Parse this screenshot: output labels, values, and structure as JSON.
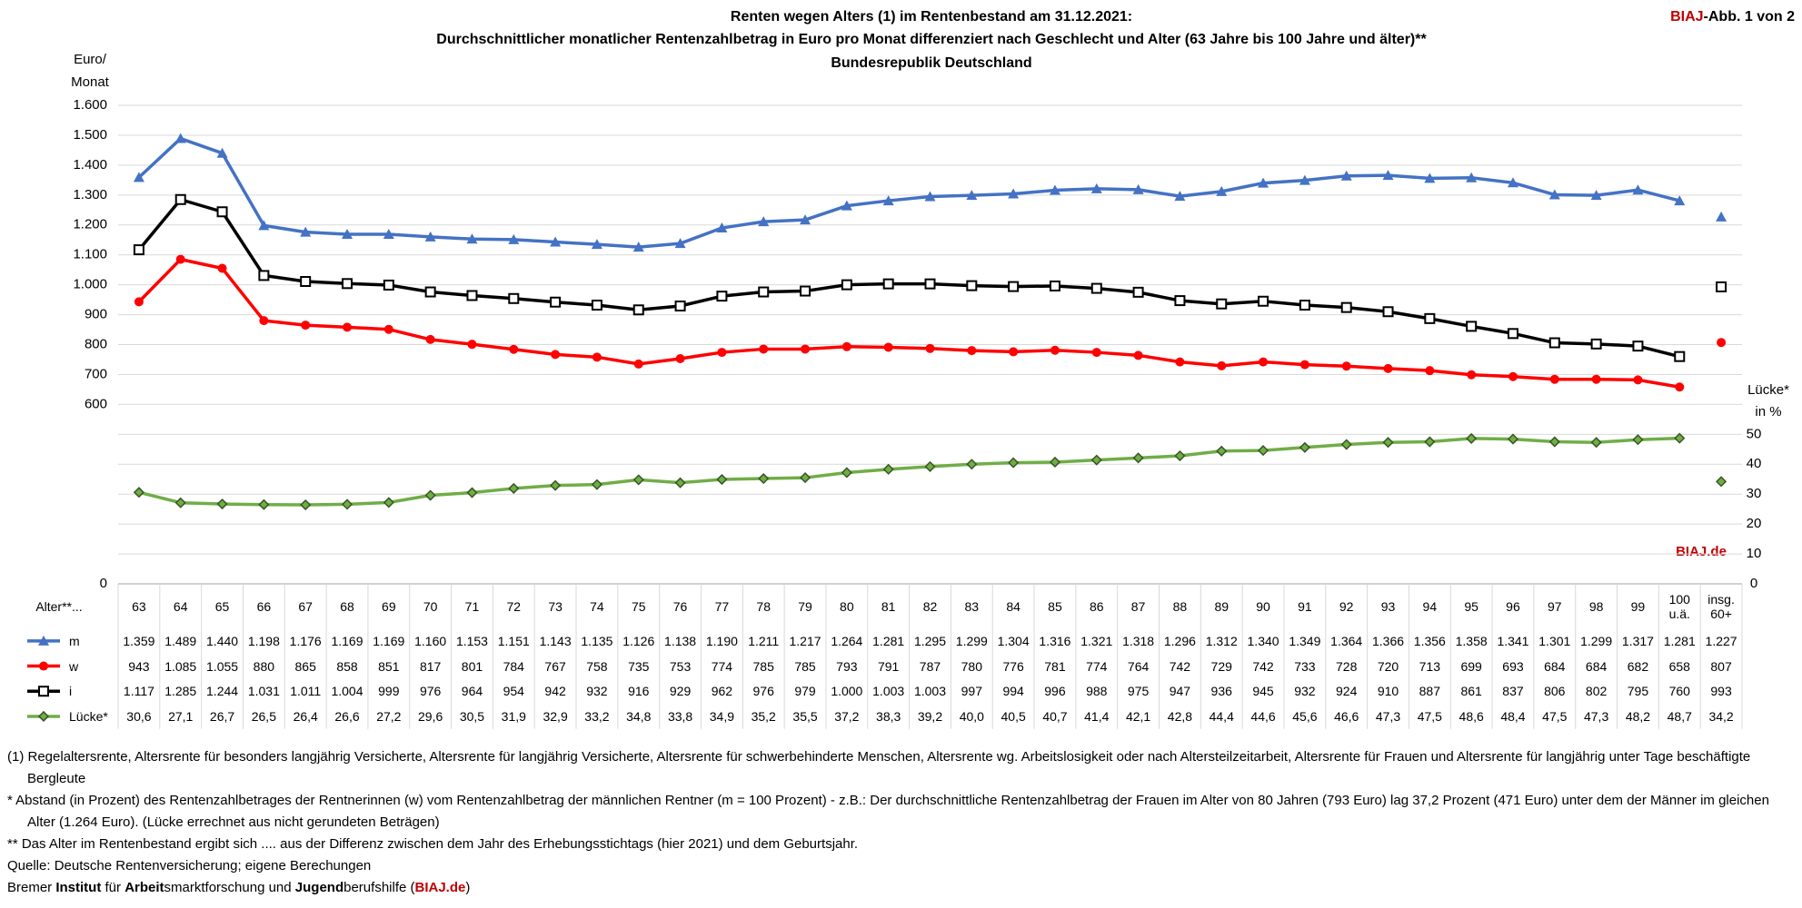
{
  "chart_data": {
    "type": "line",
    "title": [
      "Renten wegen Alters (1) im Rentenbestand am 31.12.2021:",
      "Durchschnittlicher monatlicher Rentenzahlbetrag in Euro pro Monat differenziert nach Geschlecht  und Alter (63 Jahre bis 100 Jahre und älter)**",
      "Bundesrepublik Deutschland"
    ],
    "badge": {
      "brand": "BIAJ",
      "text": "-Abb. 1 von 2"
    },
    "watermark": "BIAJ.de",
    "y_label": [
      "Euro/",
      "Monat"
    ],
    "y2_label": [
      "Lücke*",
      "in %"
    ],
    "table_header": "Alter**...",
    "categories": [
      "63",
      "64",
      "65",
      "66",
      "67",
      "68",
      "69",
      "70",
      "71",
      "72",
      "73",
      "74",
      "75",
      "76",
      "77",
      "78",
      "79",
      "80",
      "81",
      "82",
      "83",
      "84",
      "85",
      "86",
      "87",
      "88",
      "89",
      "90",
      "91",
      "92",
      "93",
      "94",
      "95",
      "96",
      "97",
      "98",
      "99",
      "100 u.ä.",
      "insg. 60+"
    ],
    "series": [
      {
        "name": "m",
        "color": "#4472c4",
        "marker": "triangle",
        "values": [
          1359,
          1489,
          1440,
          1198,
          1176,
          1169,
          1169,
          1160,
          1153,
          1151,
          1143,
          1135,
          1126,
          1138,
          1190,
          1211,
          1217,
          1264,
          1281,
          1295,
          1299,
          1304,
          1316,
          1321,
          1318,
          1296,
          1312,
          1340,
          1349,
          1364,
          1366,
          1356,
          1358,
          1341,
          1301,
          1299,
          1317,
          1281,
          1227
        ],
        "value_labels": [
          "1.359",
          "1.489",
          "1.440",
          "1.198",
          "1.176",
          "1.169",
          "1.169",
          "1.160",
          "1.153",
          "1.151",
          "1.143",
          "1.135",
          "1.126",
          "1.138",
          "1.190",
          "1.211",
          "1.217",
          "1.264",
          "1.281",
          "1.295",
          "1.299",
          "1.304",
          "1.316",
          "1.321",
          "1.318",
          "1.296",
          "1.312",
          "1.340",
          "1.349",
          "1.364",
          "1.366",
          "1.356",
          "1.358",
          "1.341",
          "1.301",
          "1.299",
          "1.317",
          "1.281",
          "1.227"
        ]
      },
      {
        "name": "w",
        "color": "#ff0000",
        "marker": "circle",
        "values": [
          943,
          1085,
          1055,
          880,
          865,
          858,
          851,
          817,
          801,
          784,
          767,
          758,
          735,
          753,
          774,
          785,
          785,
          793,
          791,
          787,
          780,
          776,
          781,
          774,
          764,
          742,
          729,
          742,
          733,
          728,
          720,
          713,
          699,
          693,
          684,
          684,
          682,
          658,
          807
        ],
        "value_labels": [
          "943",
          "1.085",
          "1.055",
          "880",
          "865",
          "858",
          "851",
          "817",
          "801",
          "784",
          "767",
          "758",
          "735",
          "753",
          "774",
          "785",
          "785",
          "793",
          "791",
          "787",
          "780",
          "776",
          "781",
          "774",
          "764",
          "742",
          "729",
          "742",
          "733",
          "728",
          "720",
          "713",
          "699",
          "693",
          "684",
          "684",
          "682",
          "658",
          "807"
        ]
      },
      {
        "name": "i",
        "color": "#000000",
        "marker": "square",
        "values": [
          1117,
          1285,
          1244,
          1031,
          1011,
          1004,
          999,
          976,
          964,
          954,
          942,
          932,
          916,
          929,
          962,
          976,
          979,
          1000,
          1003,
          1003,
          997,
          994,
          996,
          988,
          975,
          947,
          936,
          945,
          932,
          924,
          910,
          887,
          861,
          837,
          806,
          802,
          795,
          760,
          993
        ],
        "value_labels": [
          "1.117",
          "1.285",
          "1.244",
          "1.031",
          "1.011",
          "1.004",
          "999",
          "976",
          "964",
          "954",
          "942",
          "932",
          "916",
          "929",
          "962",
          "976",
          "979",
          "1.000",
          "1.003",
          "1.003",
          "997",
          "994",
          "996",
          "988",
          "975",
          "947",
          "936",
          "945",
          "932",
          "924",
          "910",
          "887",
          "861",
          "837",
          "806",
          "802",
          "795",
          "760",
          "993"
        ]
      },
      {
        "name": "Lücke*",
        "color": "#70ad47",
        "marker": "diamond",
        "axis": "y2",
        "values": [
          30.6,
          27.1,
          26.7,
          26.5,
          26.4,
          26.6,
          27.2,
          29.6,
          30.5,
          31.9,
          32.9,
          33.2,
          34.8,
          33.8,
          34.9,
          35.2,
          35.5,
          37.2,
          38.3,
          39.2,
          40.0,
          40.5,
          40.7,
          41.4,
          42.1,
          42.8,
          44.4,
          44.6,
          45.6,
          46.6,
          47.3,
          47.5,
          48.6,
          48.4,
          47.5,
          47.3,
          48.2,
          48.7,
          34.2
        ],
        "value_labels": [
          "30,6",
          "27,1",
          "26,7",
          "26,5",
          "26,4",
          "26,6",
          "27,2",
          "29,6",
          "30,5",
          "31,9",
          "32,9",
          "33,2",
          "34,8",
          "33,8",
          "34,9",
          "35,2",
          "35,5",
          "37,2",
          "38,3",
          "39,2",
          "40,0",
          "40,5",
          "40,7",
          "41,4",
          "42,1",
          "42,8",
          "44,4",
          "44,6",
          "45,6",
          "46,6",
          "47,3",
          "47,5",
          "48,6",
          "48,4",
          "47,5",
          "47,3",
          "48,2",
          "48,7",
          "34,2"
        ]
      }
    ],
    "ylim": [
      0,
      1600
    ],
    "yticks": [
      0,
      600,
      700,
      800,
      900,
      {
        "value": 1000,
        "label": "1.000"
      },
      {
        "value": 1100,
        "label": "1.100"
      },
      {
        "value": 1200,
        "label": "1.200"
      },
      {
        "value": 1300,
        "label": "1.300"
      },
      {
        "value": 1400,
        "label": "1.400"
      },
      {
        "value": 1500,
        "label": "1.500"
      },
      {
        "value": 1600,
        "label": "1.600"
      }
    ],
    "y2lim": [
      0,
      160
    ],
    "y2ticks": [
      0,
      10,
      20,
      30,
      40,
      50
    ],
    "grid": true,
    "last_point_detached": true
  },
  "notes": [
    "(1) Regelaltersrente, Altersrente für besonders langjährig Versicherte, Altersrente für langjährig Versicherte, Altersrente für schwerbehinderte Menschen, Altersrente wg. Arbeitslosigkeit oder nach Altersteilzeitarbeit, Altersrente für Frauen und  Altersrente für langjährig unter Tage beschäftigte Bergleute",
    "*   Abstand (in Prozent) des Rentenzahlbetrages der Rentnerinnen (w) vom Rentenzahlbetrag der männlichen Rentner (m = 100 Prozent) - z.B.: Der durchschnittliche Rentenzahlbetrag der Frauen im Alter von 80 Jahren (793 Euro) lag 37,2 Prozent (471 Euro) unter dem der Männer im gleichen Alter (1.264 Euro). (Lücke errechnet aus nicht gerundeten Beträgen)",
    "**  Das Alter im Rentenbestand ergibt sich .... aus der Differenz zwischen dem Jahr des Erhebungsstichtags (hier 2021) und dem Geburtsjahr.",
    "Quelle: Deutsche Rentenversicherung; eigene Berechungen"
  ],
  "credit": [
    {
      "text": "Bremer "
    },
    {
      "text": "Institut",
      "bold": true
    },
    {
      "text": " für "
    },
    {
      "text": "Arbeit",
      "bold": true
    },
    {
      "text": "smarktforschung und "
    },
    {
      "text": "Jugend",
      "bold": true
    },
    {
      "text": "berufshilfe ("
    },
    {
      "text": "BIAJ.de",
      "bold": true,
      "color": "#c00000"
    },
    {
      "text": ")"
    }
  ]
}
